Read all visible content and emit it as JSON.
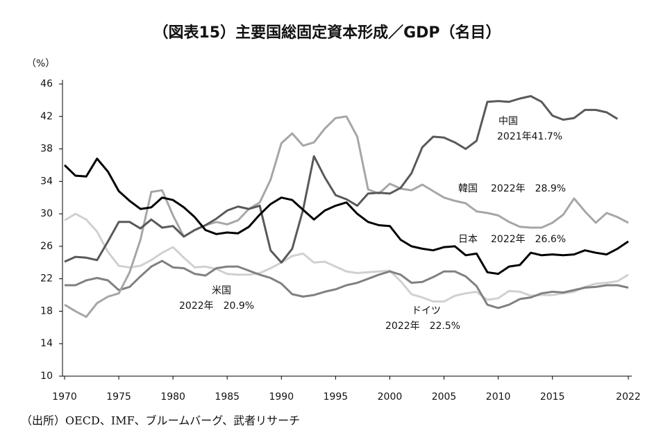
{
  "chart_data": {
    "type": "line",
    "title": "（図表15）主要国総固定資本形成／GDP（名目）",
    "y_unit": "（%）",
    "source": "（出所）OECD、IMF、ブルームバーグ、武者リサーチ",
    "x": [
      1970,
      1971,
      1972,
      1973,
      1974,
      1975,
      1976,
      1977,
      1978,
      1979,
      1980,
      1981,
      1982,
      1983,
      1984,
      1985,
      1986,
      1987,
      1988,
      1989,
      1990,
      1991,
      1992,
      1993,
      1994,
      1995,
      1996,
      1997,
      1998,
      1999,
      2000,
      2001,
      2002,
      2003,
      2004,
      2005,
      2006,
      2007,
      2008,
      2009,
      2010,
      2011,
      2012,
      2013,
      2014,
      2015,
      2016,
      2017,
      2018,
      2019,
      2020,
      2021,
      2022
    ],
    "xlim": [
      1970,
      2022
    ],
    "xticks": [
      1970,
      1975,
      1980,
      1985,
      1990,
      1995,
      2000,
      2005,
      2010,
      2015,
      2022
    ],
    "ylim": [
      10,
      46
    ],
    "yticks": [
      10,
      14,
      18,
      22,
      26,
      30,
      34,
      38,
      42,
      46
    ],
    "series": [
      {
        "name": "中国",
        "note": "2021年41.7%",
        "color": "#595959",
        "values": [
          24.1,
          24.7,
          24.6,
          24.3,
          26.6,
          29.0,
          29.0,
          28.2,
          29.3,
          28.3,
          28.5,
          27.2,
          28.0,
          28.6,
          29.4,
          30.4,
          30.9,
          30.6,
          31.0,
          25.5,
          24.0,
          25.7,
          30.5,
          37.1,
          34.5,
          32.3,
          31.8,
          31.0,
          32.5,
          32.6,
          32.5,
          33.2,
          35.0,
          38.2,
          39.5,
          39.4,
          38.8,
          38.0,
          39.0,
          43.8,
          43.9,
          43.8,
          44.2,
          44.5,
          43.8,
          42.1,
          41.6,
          41.8,
          42.8,
          42.8,
          42.5,
          41.7,
          null
        ]
      },
      {
        "name": "韓国",
        "note": "2022年　28.9%",
        "color": "#a6a6a6",
        "values": [
          18.8,
          18.0,
          17.3,
          19.0,
          19.8,
          20.2,
          22.8,
          26.8,
          32.7,
          32.9,
          29.8,
          27.2,
          28.0,
          28.6,
          29.0,
          28.7,
          29.2,
          30.6,
          31.4,
          34.2,
          38.7,
          39.9,
          38.4,
          38.8,
          40.5,
          41.8,
          42.0,
          39.5,
          33.0,
          32.5,
          33.7,
          33.1,
          32.9,
          33.6,
          32.8,
          32.0,
          31.6,
          31.3,
          30.3,
          30.1,
          29.8,
          29.0,
          28.4,
          28.3,
          28.3,
          28.9,
          29.9,
          31.9,
          30.3,
          28.9,
          30.1,
          29.6,
          28.9
        ]
      },
      {
        "name": "日本",
        "note": "2022年　26.6%",
        "color": "#000000",
        "values": [
          36.0,
          34.7,
          34.6,
          36.8,
          35.2,
          32.8,
          31.6,
          30.6,
          30.8,
          32.0,
          31.7,
          30.8,
          29.6,
          28.0,
          27.5,
          27.7,
          27.6,
          28.4,
          29.9,
          31.2,
          32.0,
          31.7,
          30.5,
          29.3,
          30.4,
          31.0,
          31.4,
          30.0,
          29.0,
          28.6,
          28.5,
          26.8,
          26.0,
          25.7,
          25.5,
          25.9,
          26.0,
          24.9,
          25.1,
          22.8,
          22.6,
          23.5,
          23.7,
          25.2,
          24.9,
          25.0,
          24.9,
          25.0,
          25.5,
          25.2,
          25.0,
          25.7,
          26.6
        ]
      },
      {
        "name": "米国",
        "note": "2022年　20.9%",
        "color": "#808080",
        "values": [
          21.2,
          21.2,
          21.8,
          22.1,
          21.8,
          20.6,
          21.0,
          22.3,
          23.5,
          24.2,
          23.4,
          23.3,
          22.6,
          22.4,
          23.3,
          23.5,
          23.5,
          23.0,
          22.5,
          22.1,
          21.4,
          20.1,
          19.8,
          20.0,
          20.4,
          20.7,
          21.2,
          21.5,
          22.0,
          22.5,
          22.9,
          22.5,
          21.5,
          21.6,
          22.2,
          22.9,
          22.9,
          22.3,
          21.1,
          18.8,
          18.4,
          18.8,
          19.5,
          19.7,
          20.2,
          20.4,
          20.3,
          20.6,
          20.9,
          21.0,
          21.2,
          21.2,
          20.9
        ]
      },
      {
        "name": "ドイツ",
        "note": "2022年　22.5%",
        "color": "#d0d0d0",
        "values": [
          29.2,
          30.0,
          29.3,
          27.8,
          25.3,
          23.6,
          23.4,
          23.6,
          24.3,
          25.2,
          25.9,
          24.6,
          23.4,
          23.5,
          23.2,
          22.6,
          22.5,
          22.5,
          22.7,
          23.3,
          24.0,
          24.8,
          25.1,
          24.0,
          24.1,
          23.5,
          22.9,
          22.7,
          22.8,
          22.9,
          23.0,
          21.7,
          20.1,
          19.7,
          19.2,
          19.2,
          19.9,
          20.2,
          20.4,
          19.4,
          19.6,
          20.5,
          20.4,
          19.9,
          20.0,
          20.0,
          20.2,
          20.4,
          21.0,
          21.4,
          21.5,
          21.7,
          22.5
        ]
      }
    ]
  }
}
